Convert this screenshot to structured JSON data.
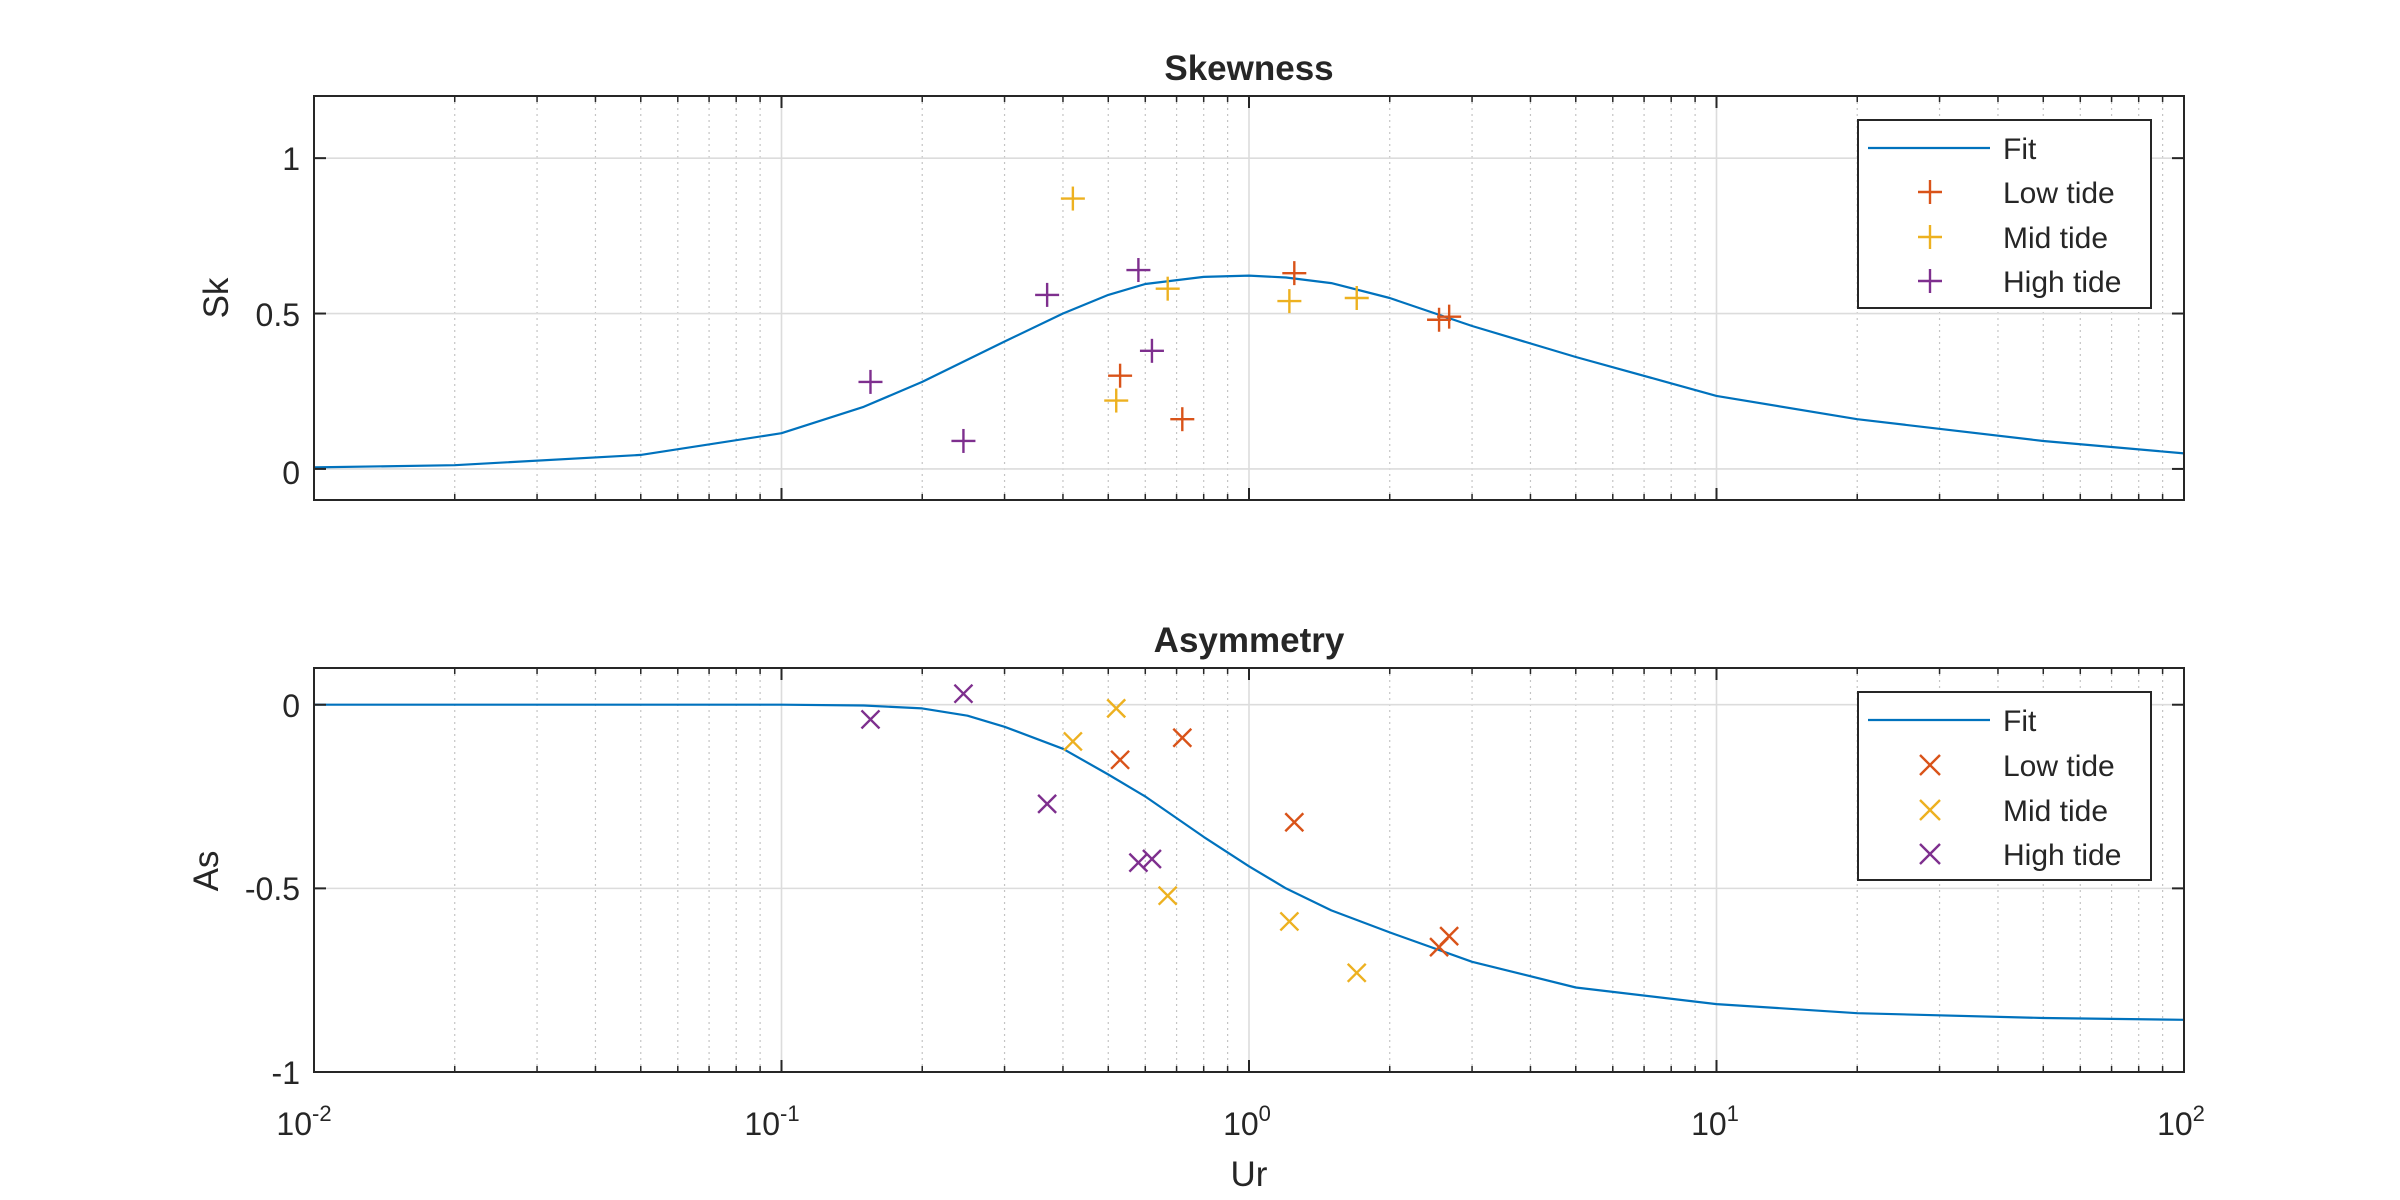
{
  "chart_data": [
    {
      "type": "scatter",
      "title": "Skewness",
      "xlabel": "",
      "ylabel": "Sk",
      "xscale": "log",
      "xlim": [
        0.01,
        100
      ],
      "ylim": [
        -0.1,
        1.2
      ],
      "yticks": [
        0,
        0.5,
        1
      ],
      "ytick_labels": [
        "0",
        "0.5",
        "1"
      ],
      "xtick_labels_shown": false,
      "grid": true,
      "minor_grid": true,
      "marker": "+",
      "legend": {
        "position": "top-right",
        "entries": [
          "Fit",
          "Low tide",
          "Mid tide",
          "High tide"
        ]
      },
      "colors": {
        "fit": "#0072BD",
        "low": "#D95319",
        "mid": "#EDB120",
        "high": "#7E2F8E"
      },
      "fit": {
        "name": "Fit",
        "x": [
          0.01,
          0.02,
          0.05,
          0.1,
          0.15,
          0.2,
          0.3,
          0.4,
          0.5,
          0.6,
          0.8,
          1,
          1.2,
          1.5,
          2,
          3,
          5,
          10,
          20,
          50,
          100
        ],
        "y": [
          0.005,
          0.012,
          0.045,
          0.115,
          0.2,
          0.28,
          0.41,
          0.5,
          0.56,
          0.595,
          0.618,
          0.622,
          0.616,
          0.598,
          0.55,
          0.46,
          0.36,
          0.235,
          0.16,
          0.09,
          0.05
        ]
      },
      "series": [
        {
          "name": "Low tide",
          "x": [
            0.53,
            0.72,
            1.25,
            2.55,
            2.68
          ],
          "y": [
            0.3,
            0.16,
            0.63,
            0.48,
            0.49
          ]
        },
        {
          "name": "Mid tide",
          "x": [
            0.42,
            0.52,
            0.67,
            1.22,
            1.7
          ],
          "y": [
            0.87,
            0.22,
            0.58,
            0.54,
            0.55
          ]
        },
        {
          "name": "High tide",
          "x": [
            0.155,
            0.245,
            0.37,
            0.58,
            0.62
          ],
          "y": [
            0.28,
            0.09,
            0.56,
            0.64,
            0.38
          ]
        }
      ]
    },
    {
      "type": "scatter",
      "title": "Asymmetry",
      "xlabel": "Ur",
      "ylabel": "As",
      "xscale": "log",
      "xlim": [
        0.01,
        100
      ],
      "ylim": [
        -1,
        0.1
      ],
      "yticks": [
        -1,
        -0.5,
        0
      ],
      "ytick_labels": [
        "-1",
        "-0.5",
        "0"
      ],
      "xticks": [
        0.01,
        0.1,
        1,
        10,
        100
      ],
      "xtick_labels": [
        {
          "base": "10",
          "exp": "-2"
        },
        {
          "base": "10",
          "exp": "-1"
        },
        {
          "base": "10",
          "exp": "0"
        },
        {
          "base": "10",
          "exp": "1"
        },
        {
          "base": "10",
          "exp": "2"
        }
      ],
      "grid": true,
      "minor_grid": true,
      "marker": "x",
      "legend": {
        "position": "top-right",
        "entries": [
          "Fit",
          "Low tide",
          "Mid tide",
          "High tide"
        ]
      },
      "colors": {
        "fit": "#0072BD",
        "low": "#D95319",
        "mid": "#EDB120",
        "high": "#7E2F8E"
      },
      "fit": {
        "name": "Fit",
        "x": [
          0.01,
          0.05,
          0.1,
          0.15,
          0.2,
          0.25,
          0.3,
          0.4,
          0.5,
          0.6,
          0.8,
          1,
          1.2,
          1.5,
          2,
          3,
          5,
          10,
          20,
          50,
          100
        ],
        "y": [
          0,
          0,
          0,
          -0.002,
          -0.01,
          -0.03,
          -0.06,
          -0.12,
          -0.19,
          -0.25,
          -0.36,
          -0.44,
          -0.5,
          -0.56,
          -0.62,
          -0.7,
          -0.77,
          -0.815,
          -0.84,
          -0.853,
          -0.858
        ]
      },
      "series": [
        {
          "name": "Low tide",
          "x": [
            0.53,
            0.72,
            1.25,
            2.55,
            2.68
          ],
          "y": [
            -0.15,
            -0.09,
            -0.32,
            -0.66,
            -0.63
          ]
        },
        {
          "name": "Mid tide",
          "x": [
            0.42,
            0.52,
            0.67,
            1.22,
            1.7
          ],
          "y": [
            -0.1,
            -0.01,
            -0.52,
            -0.59,
            -0.73
          ]
        },
        {
          "name": "High tide",
          "x": [
            0.155,
            0.245,
            0.37,
            0.58,
            0.62
          ],
          "y": [
            -0.04,
            0.03,
            -0.27,
            -0.43,
            -0.42
          ]
        }
      ]
    }
  ]
}
